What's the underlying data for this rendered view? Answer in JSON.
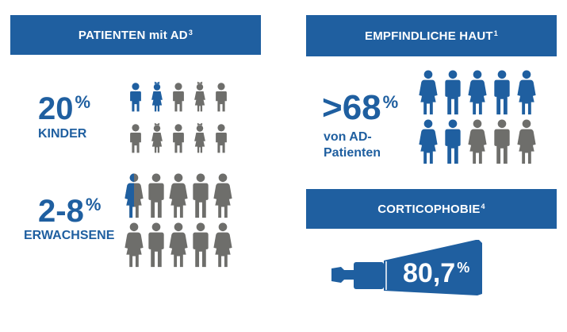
{
  "left_panel": {
    "title": "PATIENTEN mit AD",
    "title_sup": "3",
    "children": {
      "value": "20",
      "unit": "%",
      "label": "KINDER"
    },
    "adults": {
      "value": "2-8",
      "unit": "%",
      "label": "ERWACHSENE"
    }
  },
  "right_panel": {
    "title": "EMPFINDLICHE HAUT",
    "title_sup": "1",
    "stat": {
      "value": ">68",
      "unit": "%",
      "label_line1": "von AD-",
      "label_line2": "Patienten"
    }
  },
  "corticophobie": {
    "title": "CORTICOPHOBIE",
    "title_sup": "4",
    "value": "80,7",
    "unit": "%"
  },
  "icons": {
    "children_grid": [
      "boy-icon",
      "girl-icon",
      "boy-icon",
      "girl-icon",
      "boy-icon",
      "boy-icon",
      "girl-icon",
      "boy-icon",
      "girl-icon",
      "boy-icon"
    ],
    "children_highlighted": 2,
    "adults_grid": [
      "woman-icon",
      "man-icon",
      "woman-icon",
      "man-icon",
      "woman-icon",
      "woman-icon",
      "man-icon",
      "woman-icon",
      "man-icon",
      "woman-icon"
    ],
    "adults_highlight_fraction": 0.5,
    "sensitive_grid": [
      "woman-icon",
      "man-icon",
      "woman-icon",
      "man-icon",
      "woman-icon",
      "woman-icon",
      "man-icon",
      "woman-icon",
      "man-icon",
      "woman-icon"
    ],
    "sensitive_highlighted": 7
  },
  "colors": {
    "primary": "#1f5fa0",
    "gray": "#6e6e6b",
    "background": "#ffffff"
  }
}
